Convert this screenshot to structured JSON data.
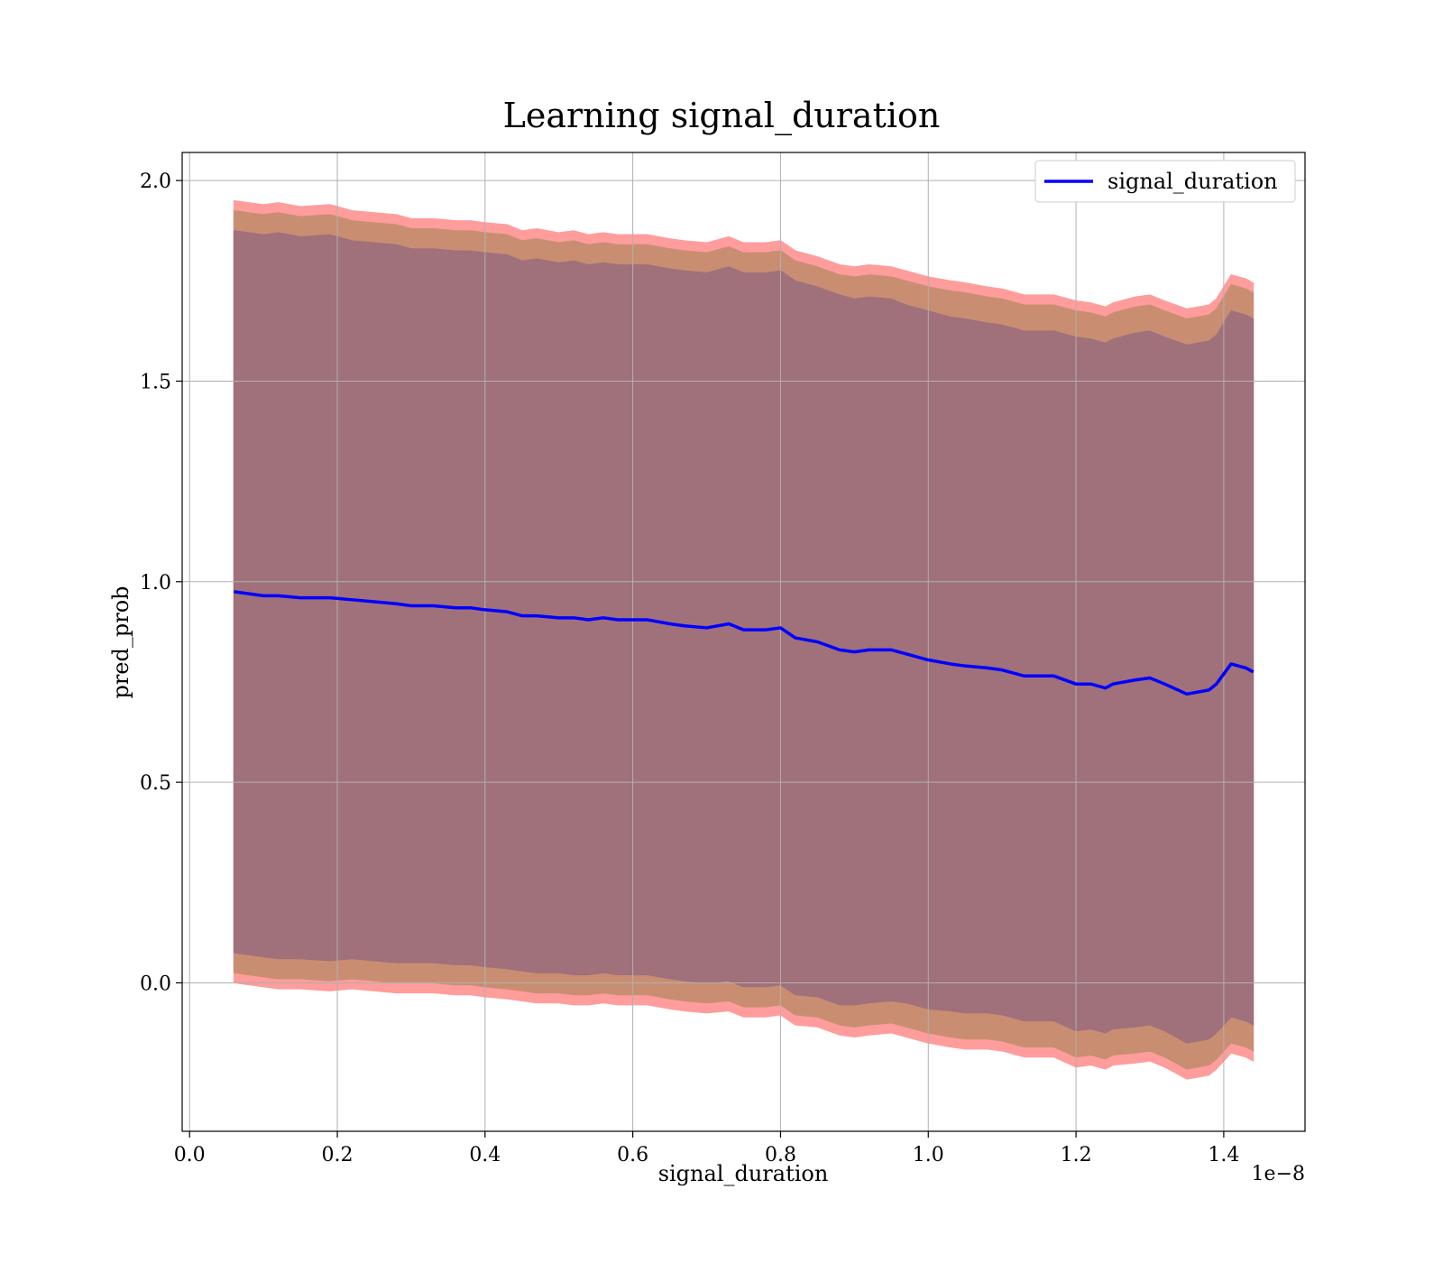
{
  "chart_data": {
    "type": "area",
    "title": "Learning signal_duration",
    "xlabel": "signal_duration",
    "ylabel": "pred_prob",
    "x_offset_label": "1e−8",
    "x_tick_labels": [
      "0.0",
      "0.2",
      "0.4",
      "0.6",
      "0.8",
      "1.0",
      "1.2",
      "1.4"
    ],
    "y_tick_labels": [
      "0.0",
      "0.5",
      "1.0",
      "1.5",
      "2.0"
    ],
    "x_ticks": [
      0.0,
      0.2,
      0.4,
      0.6,
      0.8,
      1.0,
      1.2,
      1.4
    ],
    "y_ticks": [
      0.0,
      0.5,
      1.0,
      1.5,
      2.0
    ],
    "xlim": [
      -0.01,
      1.51
    ],
    "ylim": [
      -0.37,
      2.07
    ],
    "grid": true,
    "legend_position": "top-right",
    "colors": {
      "line": "#0000ff",
      "band_outer": "#ff9c9c",
      "band_middle": "#c98e72",
      "band_inner": "#a0717a",
      "grid": "#b0b0b0"
    },
    "series": [
      {
        "name": "signal_duration",
        "x": [
          0.06,
          0.08,
          0.1,
          0.12,
          0.15,
          0.19,
          0.22,
          0.25,
          0.28,
          0.3,
          0.33,
          0.36,
          0.38,
          0.4,
          0.43,
          0.45,
          0.47,
          0.5,
          0.52,
          0.54,
          0.56,
          0.58,
          0.6,
          0.62,
          0.65,
          0.67,
          0.7,
          0.73,
          0.75,
          0.78,
          0.8,
          0.82,
          0.85,
          0.88,
          0.9,
          0.92,
          0.95,
          0.97,
          1.0,
          1.03,
          1.05,
          1.08,
          1.1,
          1.13,
          1.15,
          1.17,
          1.2,
          1.22,
          1.24,
          1.25,
          1.28,
          1.3,
          1.32,
          1.35,
          1.38,
          1.39,
          1.41,
          1.43,
          1.44
        ],
        "y": [
          0.975,
          0.97,
          0.965,
          0.965,
          0.96,
          0.96,
          0.955,
          0.95,
          0.945,
          0.94,
          0.94,
          0.935,
          0.935,
          0.93,
          0.925,
          0.915,
          0.915,
          0.91,
          0.91,
          0.905,
          0.91,
          0.905,
          0.905,
          0.905,
          0.895,
          0.89,
          0.885,
          0.895,
          0.88,
          0.88,
          0.885,
          0.86,
          0.85,
          0.83,
          0.825,
          0.83,
          0.83,
          0.82,
          0.805,
          0.795,
          0.79,
          0.785,
          0.78,
          0.765,
          0.765,
          0.765,
          0.745,
          0.745,
          0.735,
          0.745,
          0.755,
          0.76,
          0.745,
          0.72,
          0.73,
          0.745,
          0.795,
          0.785,
          0.775
        ],
        "outer_band": [
          1.95,
          1.945,
          1.94,
          1.945,
          1.935,
          1.94,
          1.925,
          1.92,
          1.915,
          1.905,
          1.905,
          1.9,
          1.9,
          1.895,
          1.89,
          1.875,
          1.88,
          1.87,
          1.875,
          1.865,
          1.87,
          1.865,
          1.865,
          1.865,
          1.855,
          1.85,
          1.845,
          1.86,
          1.845,
          1.845,
          1.85,
          1.825,
          1.81,
          1.79,
          1.785,
          1.79,
          1.785,
          1.775,
          1.76,
          1.75,
          1.745,
          1.735,
          1.73,
          1.715,
          1.715,
          1.715,
          1.7,
          1.695,
          1.685,
          1.695,
          1.71,
          1.715,
          1.7,
          1.68,
          1.69,
          1.705,
          1.765,
          1.755,
          1.745
        ],
        "middle_band": [
          1.925,
          1.92,
          1.915,
          1.92,
          1.91,
          1.915,
          1.9,
          1.895,
          1.89,
          1.88,
          1.88,
          1.875,
          1.875,
          1.87,
          1.865,
          1.85,
          1.855,
          1.845,
          1.85,
          1.84,
          1.845,
          1.84,
          1.84,
          1.84,
          1.83,
          1.825,
          1.82,
          1.835,
          1.82,
          1.82,
          1.825,
          1.8,
          1.785,
          1.765,
          1.76,
          1.765,
          1.76,
          1.75,
          1.735,
          1.725,
          1.72,
          1.71,
          1.705,
          1.69,
          1.69,
          1.69,
          1.675,
          1.67,
          1.66,
          1.67,
          1.685,
          1.69,
          1.675,
          1.655,
          1.665,
          1.68,
          1.74,
          1.73,
          1.72
        ],
        "inner_band": [
          1.875,
          1.87,
          1.865,
          1.87,
          1.86,
          1.865,
          1.85,
          1.845,
          1.84,
          1.83,
          1.83,
          1.825,
          1.825,
          1.82,
          1.815,
          1.8,
          1.805,
          1.795,
          1.8,
          1.79,
          1.795,
          1.79,
          1.79,
          1.79,
          1.78,
          1.775,
          1.77,
          1.785,
          1.77,
          1.77,
          1.775,
          1.75,
          1.735,
          1.715,
          1.705,
          1.71,
          1.705,
          1.69,
          1.675,
          1.66,
          1.655,
          1.645,
          1.64,
          1.625,
          1.625,
          1.625,
          1.61,
          1.605,
          1.595,
          1.605,
          1.62,
          1.625,
          1.61,
          1.59,
          1.6,
          1.615,
          1.675,
          1.665,
          1.655
        ]
      }
    ]
  }
}
